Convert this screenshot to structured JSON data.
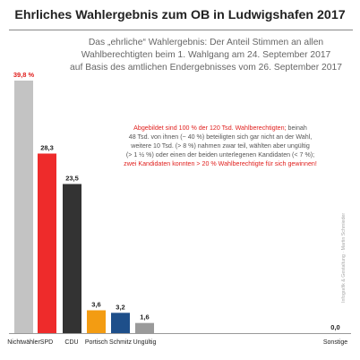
{
  "title": "Ehrliches Wahlergebnis zum OB in Ludwigshafen 2017",
  "subtitle_lines": [
    "Das „ehrliche“ Wahlergebnis: Der Anteil Stimmen an allen",
    "Wahlberechtigten beim 1.  Wahlgang am 24. September 2017",
    "auf Basis des amtlichen Endergebnisses vom 26. September 2017"
  ],
  "annotation": {
    "line1_red": "Abgebildet sind 100 % der 120 Tsd. Wahlberechtigten;",
    "line1_rest": " beinah",
    "line2": "48 Tsd. von ihnen (~ 40 %) beteiligten sich gar nicht an der Wahl,",
    "line3": "weitere 10 Tsd. (> 8 %)  nahmen zwar teil, wählten aber ungültig",
    "line4": "(> 1 ½ %) oder einen der beiden unterlegenen Kandidaten (< 7 %);",
    "line5_red": "zwei Kandidaten konnten > 20 % Wahlberechtigte für sich gewinnen!"
  },
  "watermark": "Infografik & Gestaltung · Martin Schmieder",
  "chart_data": {
    "type": "bar",
    "categories": [
      "Nichtwähler",
      "SPD",
      "CDU",
      "Portisch",
      "Schmitz",
      "Ungültig",
      "Sonstige"
    ],
    "values": [
      39.8,
      28.3,
      23.5,
      3.6,
      3.2,
      1.6,
      0.0
    ],
    "value_labels": [
      "39,8 %",
      "28,3",
      "23,5",
      "3,6",
      "3,2",
      "1,6",
      "0,0"
    ],
    "colors": [
      "#c3c3c3",
      "#ee2b2b",
      "#333333",
      "#f39c12",
      "#1e4f8a",
      "#9a9a9a",
      "#999999"
    ],
    "value_label_colors": [
      "#e0201e",
      "#222222",
      "#222222",
      "#222222",
      "#222222",
      "#222222",
      "#222222"
    ],
    "ylim": [
      0,
      39.8
    ],
    "grid": false,
    "legend": "none"
  }
}
